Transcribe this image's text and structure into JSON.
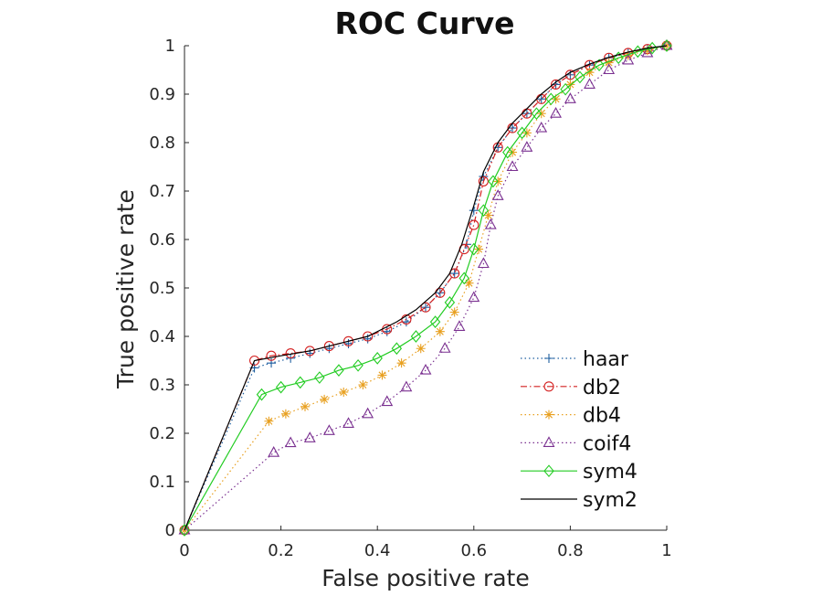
{
  "chart_data": {
    "type": "line",
    "title": "ROC Curve",
    "xlabel": "False positive rate",
    "ylabel": "True positive rate",
    "xlim": [
      0,
      1
    ],
    "ylim": [
      0,
      1
    ],
    "xticks": [
      "0",
      "0.2",
      "0.4",
      "0.6",
      "0.8",
      "1"
    ],
    "yticks": [
      "0",
      "0.1",
      "0.2",
      "0.3",
      "0.4",
      "0.5",
      "0.6",
      "0.7",
      "0.8",
      "0.9",
      "1"
    ],
    "grid": false,
    "legend_position": "bottom-right",
    "series": [
      {
        "name": "haar",
        "color": "#1f5fa0",
        "line_style": "dotted",
        "marker": "plus",
        "x": [
          0,
          0.145,
          0.18,
          0.22,
          0.26,
          0.3,
          0.34,
          0.38,
          0.42,
          0.46,
          0.5,
          0.53,
          0.56,
          0.585,
          0.6,
          0.62,
          0.65,
          0.68,
          0.71,
          0.74,
          0.77,
          0.8,
          0.84,
          0.88,
          0.92,
          0.96,
          1.0
        ],
        "y": [
          0,
          0.335,
          0.345,
          0.355,
          0.365,
          0.375,
          0.385,
          0.395,
          0.41,
          0.43,
          0.46,
          0.49,
          0.53,
          0.59,
          0.66,
          0.73,
          0.79,
          0.83,
          0.86,
          0.89,
          0.92,
          0.94,
          0.96,
          0.975,
          0.985,
          0.993,
          1.0
        ]
      },
      {
        "name": "db2",
        "color": "#d42020",
        "line_style": "dashdot",
        "marker": "circle",
        "x": [
          0,
          0.145,
          0.18,
          0.22,
          0.26,
          0.3,
          0.34,
          0.38,
          0.42,
          0.46,
          0.5,
          0.53,
          0.56,
          0.58,
          0.6,
          0.62,
          0.65,
          0.68,
          0.71,
          0.74,
          0.77,
          0.8,
          0.84,
          0.88,
          0.92,
          0.96,
          1.0
        ],
        "y": [
          0,
          0.35,
          0.36,
          0.365,
          0.37,
          0.38,
          0.39,
          0.4,
          0.415,
          0.435,
          0.46,
          0.49,
          0.53,
          0.58,
          0.63,
          0.72,
          0.79,
          0.83,
          0.86,
          0.89,
          0.92,
          0.94,
          0.96,
          0.975,
          0.985,
          0.993,
          1.0
        ]
      },
      {
        "name": "db4",
        "color": "#e8a020",
        "line_style": "dotted",
        "marker": "asterisk",
        "x": [
          0,
          0.175,
          0.21,
          0.25,
          0.29,
          0.33,
          0.37,
          0.41,
          0.45,
          0.49,
          0.53,
          0.56,
          0.59,
          0.61,
          0.63,
          0.65,
          0.68,
          0.71,
          0.74,
          0.77,
          0.8,
          0.84,
          0.88,
          0.92,
          0.96,
          1.0
        ],
        "y": [
          0,
          0.225,
          0.24,
          0.255,
          0.27,
          0.285,
          0.3,
          0.32,
          0.345,
          0.375,
          0.41,
          0.45,
          0.51,
          0.58,
          0.65,
          0.72,
          0.78,
          0.82,
          0.86,
          0.89,
          0.92,
          0.945,
          0.965,
          0.98,
          0.99,
          1.0
        ]
      },
      {
        "name": "coif4",
        "color": "#7a3090",
        "line_style": "dotted",
        "marker": "triangle",
        "x": [
          0,
          0.185,
          0.22,
          0.26,
          0.3,
          0.34,
          0.38,
          0.42,
          0.46,
          0.5,
          0.54,
          0.57,
          0.6,
          0.62,
          0.635,
          0.65,
          0.68,
          0.71,
          0.74,
          0.77,
          0.8,
          0.84,
          0.88,
          0.92,
          0.96,
          1.0
        ],
        "y": [
          0,
          0.16,
          0.18,
          0.19,
          0.205,
          0.22,
          0.24,
          0.265,
          0.295,
          0.33,
          0.375,
          0.42,
          0.48,
          0.55,
          0.63,
          0.69,
          0.75,
          0.79,
          0.83,
          0.86,
          0.89,
          0.92,
          0.95,
          0.97,
          0.985,
          1.0
        ]
      },
      {
        "name": "sym4",
        "color": "#22cc22",
        "line_style": "solid",
        "marker": "diamond",
        "x": [
          0,
          0.16,
          0.2,
          0.24,
          0.28,
          0.32,
          0.36,
          0.4,
          0.44,
          0.48,
          0.52,
          0.55,
          0.58,
          0.6,
          0.62,
          0.64,
          0.67,
          0.7,
          0.73,
          0.76,
          0.79,
          0.82,
          0.86,
          0.9,
          0.94,
          0.97,
          1.0
        ],
        "y": [
          0,
          0.28,
          0.295,
          0.305,
          0.315,
          0.33,
          0.34,
          0.355,
          0.375,
          0.4,
          0.43,
          0.47,
          0.52,
          0.58,
          0.66,
          0.72,
          0.78,
          0.82,
          0.86,
          0.89,
          0.91,
          0.935,
          0.96,
          0.975,
          0.988,
          0.995,
          1.0
        ]
      },
      {
        "name": "sym2",
        "color": "#000000",
        "line_style": "solid",
        "marker": "none",
        "x": [
          0,
          0.145,
          0.2,
          0.26,
          0.32,
          0.38,
          0.44,
          0.48,
          0.52,
          0.55,
          0.575,
          0.6,
          0.62,
          0.65,
          0.68,
          0.71,
          0.74,
          0.77,
          0.8,
          0.84,
          0.88,
          0.92,
          0.96,
          1.0
        ],
        "y": [
          0,
          0.35,
          0.36,
          0.37,
          0.385,
          0.4,
          0.43,
          0.455,
          0.49,
          0.53,
          0.59,
          0.67,
          0.74,
          0.8,
          0.84,
          0.87,
          0.9,
          0.925,
          0.945,
          0.962,
          0.976,
          0.987,
          0.995,
          1.0
        ]
      }
    ]
  }
}
